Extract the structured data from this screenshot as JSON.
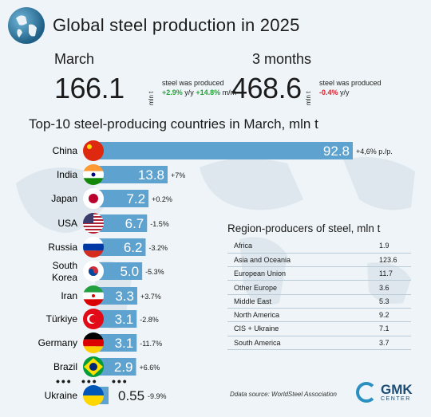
{
  "header": {
    "title": "Global steel production in 2025"
  },
  "march": {
    "period": "March",
    "value": "166.1",
    "unit": "mln t",
    "desc": "steel was produced",
    "change_yy": "+2.9%",
    "yy": "y/y",
    "change_mm": "+14.8%",
    "mm": "m/m"
  },
  "three_months": {
    "period": "3 months",
    "value": "468.6",
    "unit": "mln t",
    "desc": "steel was produced",
    "change_yy": "-0.4%",
    "yy": "y/y"
  },
  "chart_title": "Top-10 steel-producing countries in March, mln t",
  "chart_data": {
    "type": "bar",
    "orientation": "horizontal",
    "title": "Top-10 steel-producing countries in March, mln t",
    "categories": [
      "China",
      "India",
      "Japan",
      "USA",
      "Russia",
      "South Korea",
      "Iran",
      "Türkiye",
      "Germany",
      "Brazil",
      "Ukraine"
    ],
    "values": [
      92.8,
      13.8,
      7.2,
      6.7,
      6.2,
      5.0,
      3.3,
      3.1,
      3.1,
      2.9,
      0.55
    ],
    "value_labels": [
      "92.8",
      "13.8",
      "7.2",
      "6.7",
      "6.2",
      "5.0",
      "3.3",
      "3.1",
      "3.1",
      "2.9",
      "0.55"
    ],
    "changes": [
      "+4,6% p./p.",
      "+7%",
      "+0.2%",
      "-1.5%",
      "-3.2%",
      "-5.3%",
      "+3.7%",
      "-2.8%",
      "-11.7%",
      "+6.6%",
      "-9.9%"
    ],
    "flag_icons": [
      "china-flag-icon",
      "india-flag-icon",
      "japan-flag-icon",
      "usa-flag-icon",
      "russia-flag-icon",
      "south-korea-flag-icon",
      "iran-flag-icon",
      "turkiye-flag-icon",
      "germany-flag-icon",
      "brazil-flag-icon",
      "ukraine-flag-icon"
    ],
    "bar_color": "#5ea3cf"
  },
  "regions": {
    "title": "Region-producers of steel, mln t",
    "rows": [
      {
        "name": "Africa",
        "value": "1.9"
      },
      {
        "name": "Asia and Oceania",
        "value": "123.6"
      },
      {
        "name": "European Union",
        "value": "11.7"
      },
      {
        "name": "Other Europe",
        "value": "3.6"
      },
      {
        "name": "Middle East",
        "value": "5.3"
      },
      {
        "name": "North America",
        "value": "9.2"
      },
      {
        "name": "CIS + Ukraine",
        "value": "7.1"
      },
      {
        "name": "South America",
        "value": "3.7"
      }
    ]
  },
  "source": "Ddata source: WorldSteel Association",
  "logo": {
    "name": "GMK",
    "sub": "CENTER"
  },
  "dots": "•••",
  "colors": {
    "accent": "#2a8fc1",
    "positive": "#27a33a",
    "negative": "#d6232e"
  }
}
